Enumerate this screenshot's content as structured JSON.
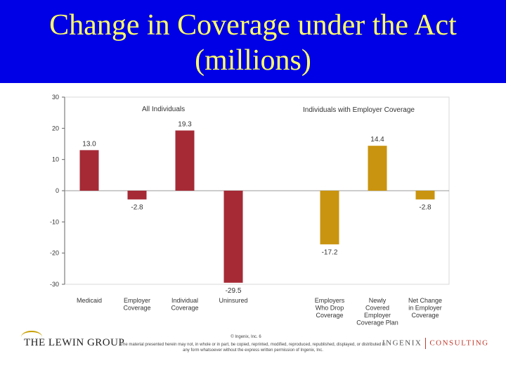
{
  "title": {
    "line1": "Change in Coverage under the Act",
    "line2": "(millions)"
  },
  "colors": {
    "title_bg": "#0000e6",
    "title_text": "#ffff66",
    "all_individuals": "#a52a36",
    "employer_coverage": "#c9940f"
  },
  "chart_data": {
    "type": "bar",
    "ylim": [
      -30,
      30
    ],
    "yticks": [
      30,
      20,
      10,
      0,
      -10,
      -20,
      -30
    ],
    "grid": false,
    "panels": [
      {
        "name": "All Individuals",
        "color": "#a52a36"
      },
      {
        "name": "Individuals with Employer Coverage",
        "color": "#c9940f"
      }
    ],
    "bars": [
      {
        "category": [
          "Medicaid"
        ],
        "value": 13.0,
        "label": "13.0",
        "panel": 0
      },
      {
        "category": [
          "Employer",
          "Coverage"
        ],
        "value": -2.8,
        "label": "-2.8",
        "panel": 0
      },
      {
        "category": [
          "Individual",
          "Coverage"
        ],
        "value": 19.3,
        "label": "19.3",
        "panel": 0
      },
      {
        "category": [
          "Uninsured"
        ],
        "value": -29.5,
        "label": "-29.5",
        "panel": 0
      },
      {
        "category": [
          "Employers",
          "Who Drop",
          "Coverage"
        ],
        "value": -17.2,
        "label": "-17.2",
        "panel": 1
      },
      {
        "category": [
          "Newly",
          "Covered",
          "Employer",
          "Coverage Plan"
        ],
        "value": 14.4,
        "label": "14.4",
        "panel": 1
      },
      {
        "category": [
          "Net Change",
          "in Employer",
          "Coverage"
        ],
        "value": -2.8,
        "label": "-2.8",
        "panel": 1
      }
    ]
  },
  "footer": {
    "left_logo": "THE LEWIN GROUP",
    "copyright": "© Ingenix, Inc.   6",
    "notice": "The material presented herein may not, in whole or in part, be copied, reprinted, modified, reproduced, republished, displayed, or distributed in any form whatsoever without the express written permission of Ingenix, Inc.",
    "right_logo_a": "INGENIX",
    "right_logo_b": "CONSULTING"
  }
}
